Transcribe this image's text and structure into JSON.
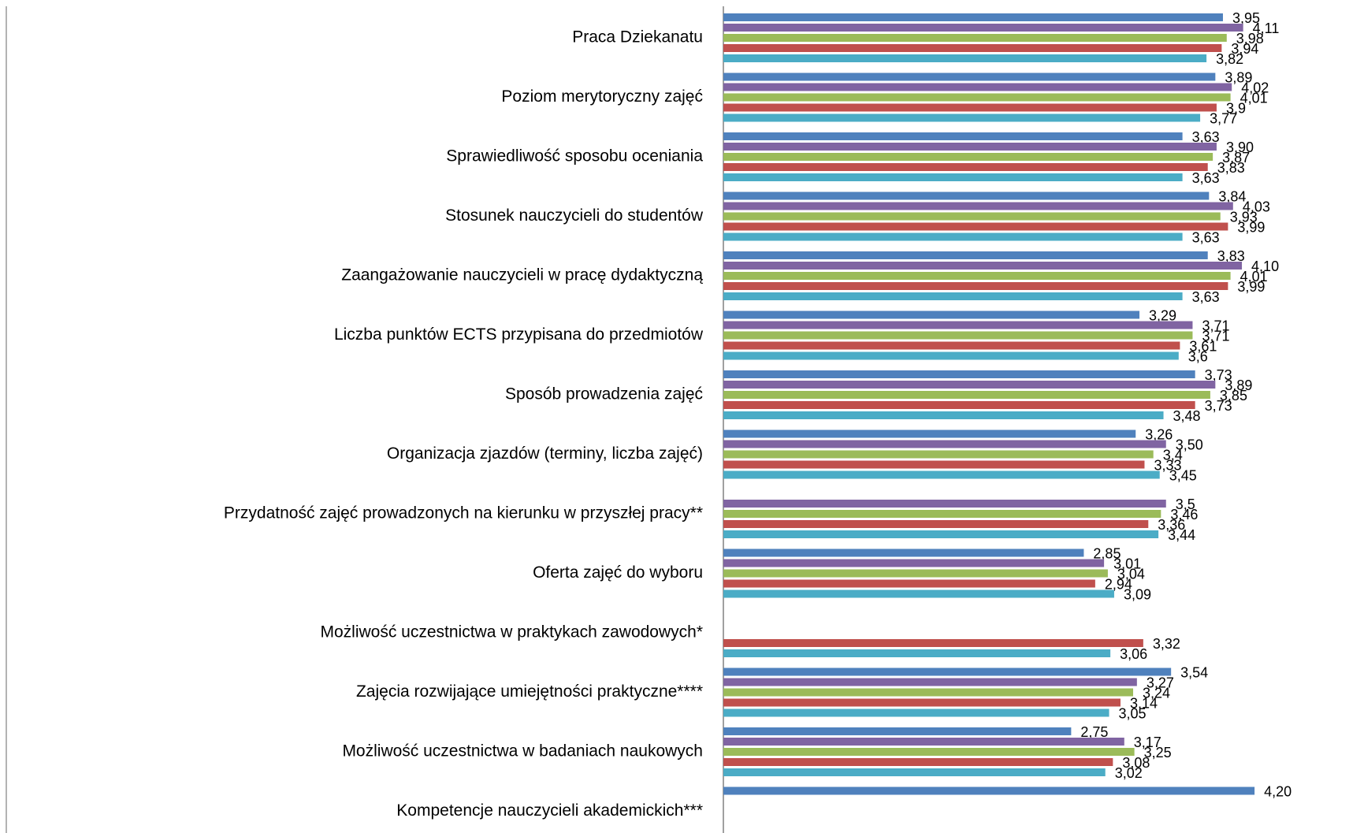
{
  "chart_data": {
    "type": "bar",
    "orientation": "horizontal",
    "title": "",
    "xlabel": "",
    "ylabel": "",
    "xlim": [
      0,
      4.35
    ],
    "grid": false,
    "legend": "none",
    "categories": [
      "Praca Dziekanatu",
      "Poziom merytoryczny zajęć",
      "Sprawiedliwość sposobu oceniania",
      "Stosunek nauczycieli do studentów",
      "Zaangażowanie nauczycieli w pracę dydaktyczną",
      "Liczba punktów ECTS przypisana do przedmiotów",
      "Sposób prowadzenia zajęć",
      "Organizacja zjazdów (terminy, liczba zajęć)",
      "Przydatność zajęć prowadzonych na kierunku w przyszłej pracy**",
      "Oferta zajęć do wyboru",
      "Możliwość uczestnictwa w praktykach zawodowych*",
      "Zajęcia rozwijające umiejętności praktyczne****",
      "Możliwość uczestnictwa w badaniach naukowych",
      "Kompetencje nauczycieli akademickich***"
    ],
    "series": [
      {
        "color": "#4f81bd",
        "values": [
          3.95,
          3.89,
          3.63,
          3.84,
          3.83,
          3.29,
          3.73,
          3.26,
          null,
          2.85,
          null,
          3.54,
          2.75,
          4.2
        ],
        "labels": [
          "3,95",
          "3,89",
          "3,63",
          "3,84",
          "3,83",
          "3,29",
          "3,73",
          "3,26",
          "",
          "2,85",
          "",
          "3,54",
          "2,75",
          "4,20"
        ]
      },
      {
        "color": "#8064a2",
        "values": [
          4.11,
          4.02,
          3.9,
          4.03,
          4.1,
          3.71,
          3.89,
          3.5,
          3.5,
          3.01,
          null,
          3.27,
          3.17,
          null
        ],
        "labels": [
          "4,11",
          "4,02",
          "3,90",
          "4,03",
          "4,10",
          "3,71",
          "3,89",
          "3,50",
          "3,5",
          "3,01",
          "",
          "3,27",
          "3,17",
          ""
        ]
      },
      {
        "color": "#9bbb59",
        "values": [
          3.98,
          4.01,
          3.87,
          3.93,
          4.01,
          3.71,
          3.85,
          3.4,
          3.46,
          3.04,
          null,
          3.24,
          3.25,
          null
        ],
        "labels": [
          "3,98",
          "4,01",
          "3,87",
          "3,93",
          "4,01",
          "3,71",
          "3,85",
          "3,4",
          "3,46",
          "3,04",
          "",
          "3,24",
          "3,25",
          ""
        ]
      },
      {
        "color": "#c0504d",
        "values": [
          3.94,
          3.9,
          3.83,
          3.99,
          3.99,
          3.61,
          3.73,
          3.33,
          3.36,
          2.94,
          3.32,
          3.14,
          3.08,
          null
        ],
        "labels": [
          "3,94",
          "3,9",
          "3,83",
          "3,99",
          "3,99",
          "3,61",
          "3,73",
          "3,33",
          "3,36",
          "2,94",
          "3,32",
          "3,14",
          "3,08",
          ""
        ]
      },
      {
        "color": "#4bacc6",
        "values": [
          3.82,
          3.77,
          3.63,
          3.63,
          3.63,
          3.6,
          3.48,
          3.45,
          3.44,
          3.09,
          3.06,
          3.05,
          3.02,
          null
        ],
        "labels": [
          "3,82",
          "3,77",
          "3,63",
          "3,63",
          "3,63",
          "3,6",
          "3,48",
          "3,45",
          "3,44",
          "3,09",
          "3,06",
          "3,05",
          "3,02",
          ""
        ]
      }
    ]
  }
}
